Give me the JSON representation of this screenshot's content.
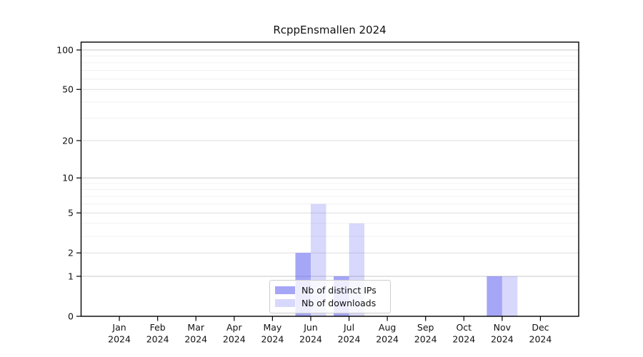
{
  "chart_data": {
    "type": "bar",
    "title": "RcppEnsmallen 2024",
    "categories": [
      "Jan",
      "Feb",
      "Mar",
      "Apr",
      "May",
      "Jun",
      "Jul",
      "Aug",
      "Sep",
      "Oct",
      "Nov",
      "Dec"
    ],
    "x_year_label": "2024",
    "series": [
      {
        "name": "Nb of distinct IPs",
        "color": "rgba(85,85,240,0.52)",
        "values": [
          0,
          0,
          0,
          0,
          0,
          2,
          1,
          0,
          0,
          0,
          1,
          0
        ]
      },
      {
        "name": "Nb of downloads",
        "color": "rgba(85,85,240,0.23)",
        "values": [
          0,
          0,
          0,
          0,
          0,
          6,
          4,
          0,
          0,
          0,
          1,
          0
        ]
      }
    ],
    "yscale": "log1p",
    "ylim": [
      0,
      100
    ],
    "yticks": [
      0,
      1,
      2,
      5,
      10,
      20,
      50,
      100
    ],
    "grid": true,
    "gridlines": {
      "strong": [
        1,
        10,
        100
      ],
      "medium": [
        2,
        5,
        20,
        50
      ],
      "minor": [
        3,
        4,
        6,
        7,
        8,
        9,
        30,
        40,
        60,
        70,
        80,
        90
      ]
    },
    "legend_position": "bottom-center",
    "colors": {
      "axis": "#000000",
      "grid_strong": "#c8c8c8",
      "grid_medium": "#dedede",
      "grid_minor": "#f0f0f0",
      "text": "#111111"
    }
  }
}
